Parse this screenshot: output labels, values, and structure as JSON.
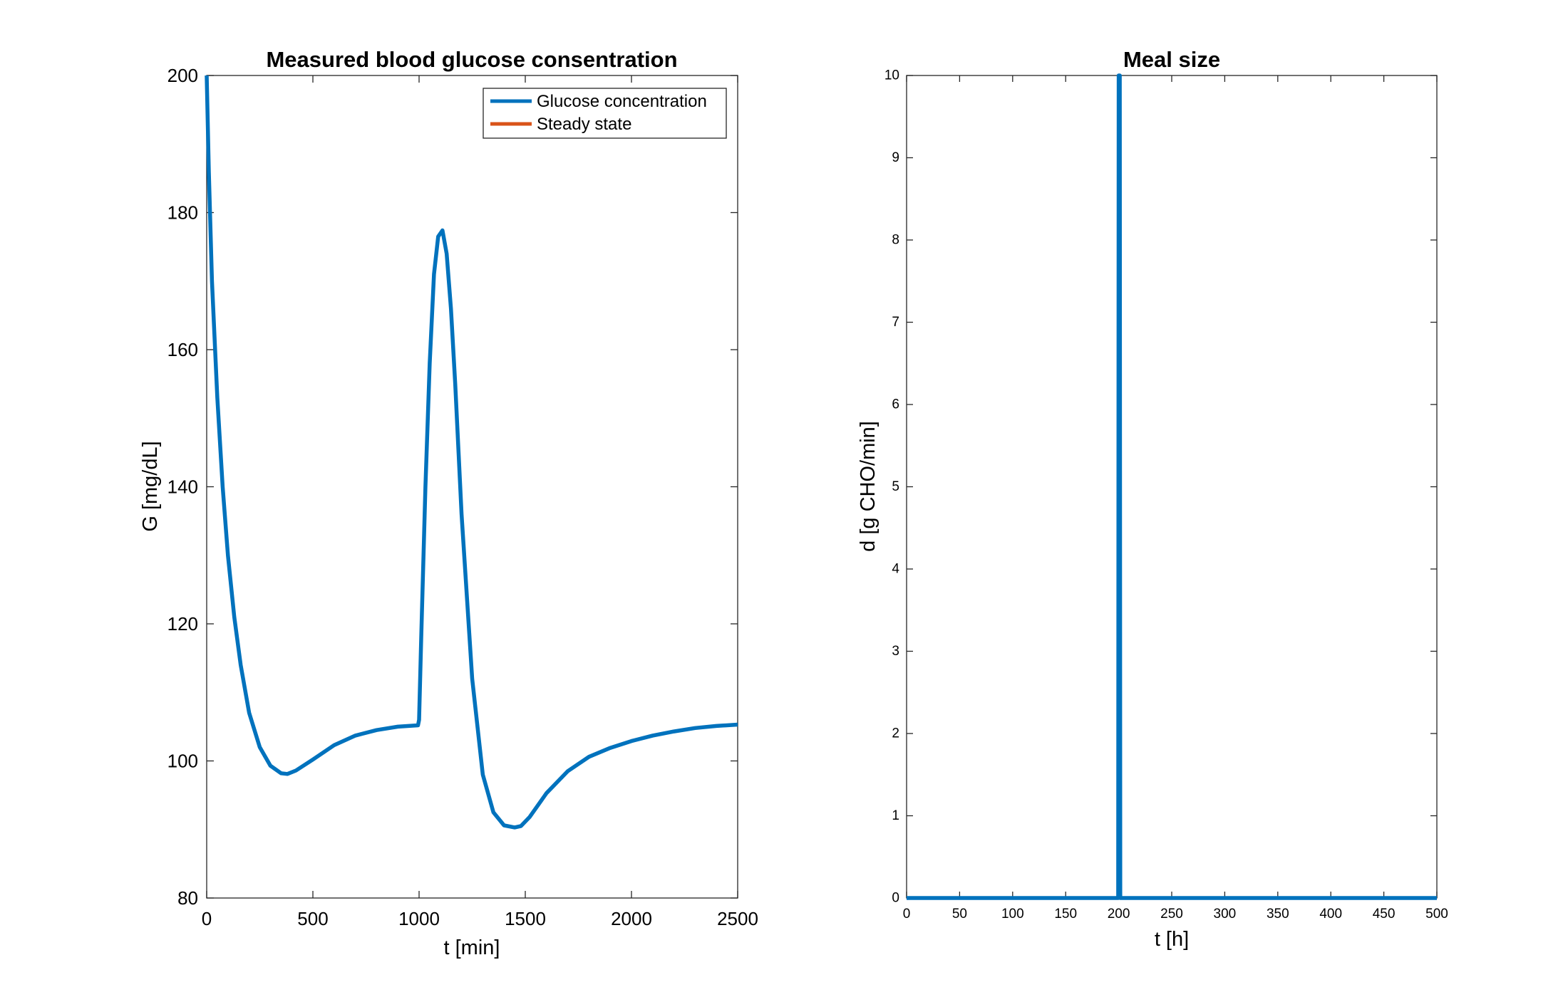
{
  "chart_data": [
    {
      "type": "line",
      "title": "Measured blood glucose consentration",
      "xlabel": "t [min]",
      "ylabel": "G [mg/dL]",
      "xlim": [
        0,
        2500
      ],
      "ylim": [
        80,
        200
      ],
      "xticks": [
        "0",
        "500",
        "1000",
        "1500",
        "2000",
        "2500"
      ],
      "yticks": [
        "80",
        "100",
        "120",
        "140",
        "160",
        "180",
        "200"
      ],
      "grid": false,
      "legend": {
        "placement": "top-right",
        "entries": [
          "Glucose concentration",
          "Steady state"
        ]
      },
      "series": [
        {
          "name": "Glucose concentration",
          "color": "#0072BD",
          "x": [
            0,
            10,
            25,
            50,
            75,
            100,
            130,
            160,
            200,
            250,
            300,
            350,
            380,
            420,
            500,
            600,
            700,
            800,
            900,
            995,
            1000,
            1010,
            1030,
            1050,
            1070,
            1090,
            1110,
            1130,
            1150,
            1170,
            1200,
            1250,
            1300,
            1350,
            1400,
            1450,
            1480,
            1520,
            1600,
            1700,
            1800,
            1900,
            2000,
            2100,
            2200,
            2300,
            2400,
            2500
          ],
          "y": [
            200,
            186,
            170,
            153,
            140,
            130,
            121,
            114,
            107,
            102,
            99.3,
            98.2,
            98.1,
            98.6,
            100.2,
            102.3,
            103.7,
            104.5,
            105.0,
            105.2,
            106,
            118,
            140,
            158,
            171,
            176.5,
            177.4,
            174,
            166,
            155,
            136,
            112,
            98,
            92.5,
            90.6,
            90.3,
            90.5,
            91.8,
            95.3,
            98.5,
            100.6,
            101.9,
            102.9,
            103.7,
            104.3,
            104.8,
            105.1,
            105.3
          ]
        },
        {
          "name": "Steady state",
          "color": "#D95319",
          "x": [],
          "y": []
        }
      ]
    },
    {
      "type": "line",
      "title": "Meal size",
      "xlabel": "t [h]",
      "ylabel": "d [g CHO/min]",
      "xlim": [
        0,
        500
      ],
      "ylim": [
        0,
        10
      ],
      "xticks": [
        "0",
        "50",
        "100",
        "150",
        "200",
        "250",
        "300",
        "350",
        "400",
        "450",
        "500"
      ],
      "yticks": [
        "0",
        "1",
        "2",
        "3",
        "4",
        "5",
        "6",
        "7",
        "8",
        "9",
        "10"
      ],
      "grid": false,
      "series": [
        {
          "color": "#0072BD",
          "x": [
            0,
            199.5,
            200,
            201,
            201.5,
            500
          ],
          "y": [
            0,
            0,
            10,
            10,
            0,
            0
          ]
        }
      ]
    }
  ]
}
